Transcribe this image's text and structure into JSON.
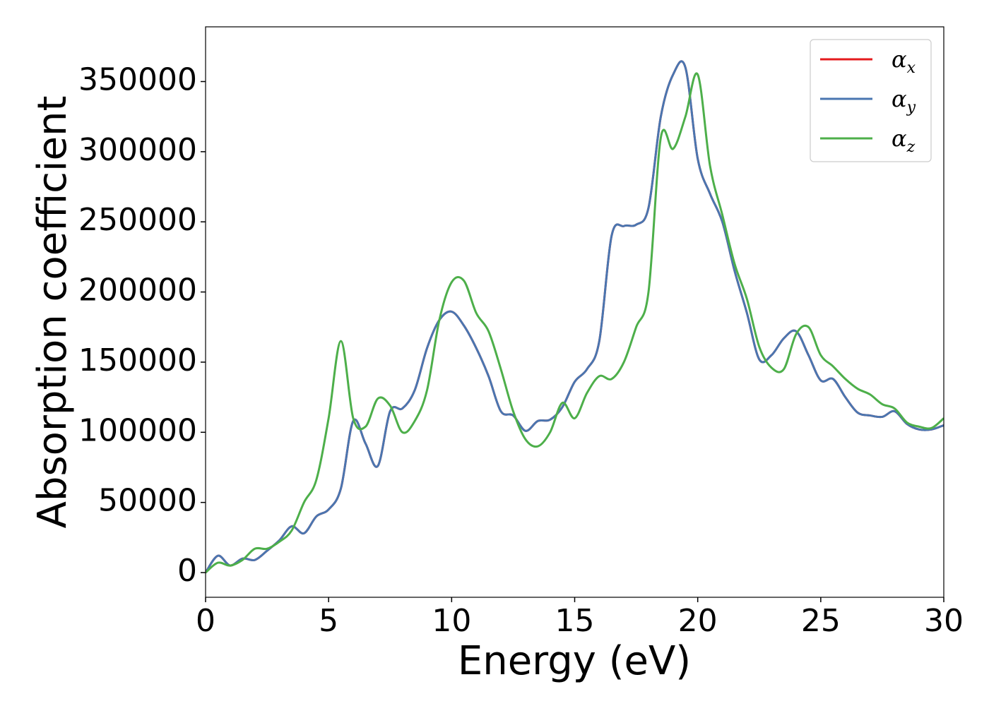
{
  "chart_data": {
    "type": "line",
    "x_label": "Energy (eV)",
    "y_label": "Absorption coefficient",
    "x": [
      0,
      0.5,
      1,
      1.5,
      2,
      2.5,
      3,
      3.5,
      4,
      4.5,
      5,
      5.5,
      6,
      6.5,
      7,
      7.5,
      8,
      8.5,
      9,
      9.5,
      10,
      10.5,
      11,
      11.5,
      12,
      12.5,
      13,
      13.5,
      14,
      14.5,
      15,
      15.5,
      16,
      16.5,
      17,
      17.5,
      18,
      18.5,
      19,
      19.5,
      20,
      20.5,
      21,
      21.5,
      22,
      22.5,
      23,
      23.5,
      24,
      24.5,
      25,
      25.5,
      26,
      26.5,
      27,
      27.5,
      28,
      28.5,
      29,
      29.5,
      30
    ],
    "series": [
      {
        "name": "αx",
        "color": "#e41a1c",
        "values": [
          0,
          12000,
          5000,
          10000,
          9000,
          15600,
          23000,
          33000,
          28000,
          40000,
          45000,
          60000,
          108000,
          92000,
          76000,
          115000,
          117000,
          130000,
          160000,
          180000,
          186000,
          176000,
          160000,
          140000,
          115000,
          112000,
          101000,
          108000,
          109000,
          118000,
          136000,
          145000,
          165000,
          240000,
          247000,
          248000,
          260000,
          325000,
          355000,
          360000,
          295000,
          270000,
          250000,
          215000,
          185000,
          152000,
          155000,
          167000,
          172000,
          155000,
          137000,
          138000,
          125000,
          114000,
          112000,
          111000,
          115000,
          106000,
          102000,
          102000,
          105000
        ]
      },
      {
        "name": "αy",
        "color": "#4a76b0",
        "values": [
          0,
          12000,
          5000,
          10000,
          9000,
          15600,
          23000,
          33000,
          28000,
          40000,
          45000,
          60000,
          108000,
          92000,
          76000,
          115000,
          117000,
          130000,
          160000,
          180000,
          186000,
          176000,
          160000,
          140000,
          115000,
          112000,
          101000,
          108000,
          109000,
          118000,
          136000,
          145000,
          165000,
          240000,
          247000,
          248000,
          260000,
          325000,
          355000,
          360000,
          295000,
          270000,
          250000,
          215000,
          185000,
          152000,
          155000,
          167000,
          172000,
          155000,
          137000,
          138000,
          125000,
          114000,
          112000,
          111000,
          115000,
          106000,
          102000,
          102000,
          105000
        ]
      },
      {
        "name": "αz",
        "color": "#4daf4a",
        "values": [
          0,
          7000,
          5000,
          9000,
          17000,
          17000,
          22000,
          30000,
          50000,
          66000,
          110000,
          165000,
          110000,
          104000,
          124000,
          119000,
          100000,
          108000,
          130000,
          180000,
          207000,
          208000,
          185000,
          172000,
          145000,
          115000,
          95000,
          90000,
          100000,
          121000,
          110000,
          128000,
          140000,
          138000,
          150000,
          175000,
          200000,
          310000,
          302000,
          325000,
          355000,
          290000,
          255000,
          220000,
          195000,
          161000,
          146000,
          145000,
          170000,
          175000,
          155000,
          147000,
          138000,
          131000,
          127000,
          120000,
          117000,
          107000,
          104000,
          103000,
          110000
        ]
      }
    ],
    "xlim": [
      0,
      30
    ],
    "xticks": [
      0,
      5,
      10,
      15,
      20,
      25,
      30
    ],
    "ylim": [
      -17600,
      389000
    ],
    "yticks": [
      0,
      50000,
      100000,
      150000,
      200000,
      250000,
      300000,
      350000
    ],
    "grid": false,
    "legend": "upper right"
  }
}
